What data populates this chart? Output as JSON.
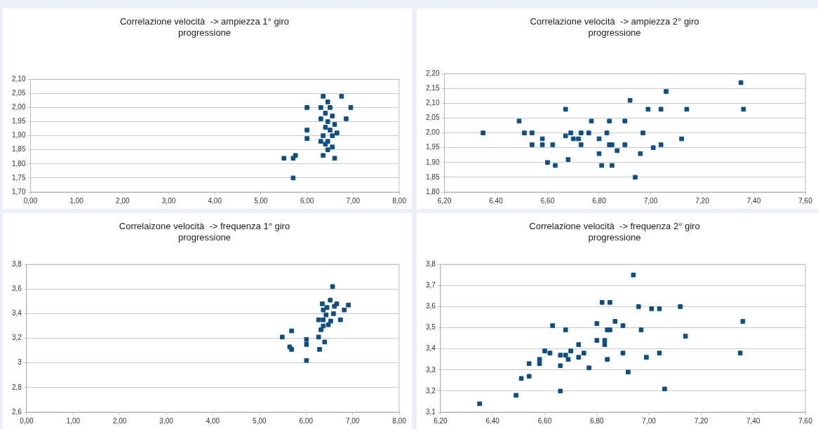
{
  "chart_data": [
    {
      "type": "scatter",
      "title": "Correlazione velocità  -> ampiezza 1° giro progressione",
      "marker": "square",
      "grid": "y",
      "xlim": [
        0,
        8
      ],
      "xticks": [
        {
          "value": 0,
          "label": "0,00"
        },
        {
          "value": 1,
          "label": "1,00"
        },
        {
          "value": 2,
          "label": "2,00"
        },
        {
          "value": 3,
          "label": "3,00"
        },
        {
          "value": 4,
          "label": "4,00"
        },
        {
          "value": 5,
          "label": "5,00"
        },
        {
          "value": 6,
          "label": "6,00"
        },
        {
          "value": 7,
          "label": "7,00"
        },
        {
          "value": 8,
          "label": "8,00"
        }
      ],
      "ylim": [
        1.7,
        2.1
      ],
      "yticks": [
        {
          "value": 1.7,
          "label": "1,70"
        },
        {
          "value": 1.75,
          "label": "1,75"
        },
        {
          "value": 1.8,
          "label": "1,80"
        },
        {
          "value": 1.85,
          "label": "1,85"
        },
        {
          "value": 1.9,
          "label": "1,90"
        },
        {
          "value": 1.95,
          "label": "1,95"
        },
        {
          "value": 2.0,
          "label": "2,00"
        },
        {
          "value": 2.05,
          "label": "2,05"
        },
        {
          "value": 2.1,
          "label": "2,10"
        }
      ],
      "series": [
        {
          "color": "#0b4f86",
          "x": [
            6.35,
            6.75,
            6.45,
            6.0,
            6.3,
            6.5,
            6.95,
            6.4,
            6.55,
            6.85,
            6.3,
            6.45,
            6.6,
            6.4,
            6.5,
            6.0,
            6.65,
            6.35,
            6.55,
            6.0,
            6.3,
            6.45,
            6.55,
            6.45,
            6.35,
            6.6,
            5.5,
            5.7,
            5.75,
            5.7,
            6.4
          ],
          "values": [
            2.04,
            2.04,
            2.02,
            2.0,
            2.0,
            2.0,
            2.0,
            1.98,
            1.97,
            1.96,
            1.96,
            1.95,
            1.94,
            1.93,
            1.92,
            1.92,
            1.91,
            1.9,
            1.9,
            1.89,
            1.88,
            1.88,
            1.86,
            1.85,
            1.83,
            1.82,
            1.82,
            1.82,
            1.83,
            1.75,
            1.87
          ]
        }
      ]
    },
    {
      "type": "scatter",
      "title": "Correlazione velocità  -> ampiezza 2° giro progressione",
      "marker": "square",
      "grid": "y",
      "xlim": [
        6.2,
        7.6
      ],
      "xticks": [
        {
          "value": 6.2,
          "label": "6,20"
        },
        {
          "value": 6.4,
          "label": "6,40"
        },
        {
          "value": 6.6,
          "label": "6,60"
        },
        {
          "value": 6.8,
          "label": "6,80"
        },
        {
          "value": 7.0,
          "label": "7,00"
        },
        {
          "value": 7.2,
          "label": "7,20"
        },
        {
          "value": 7.4,
          "label": "7,40"
        },
        {
          "value": 7.6,
          "label": "7,60"
        }
      ],
      "ylim": [
        1.8,
        2.2
      ],
      "yticks": [
        {
          "value": 1.8,
          "label": "1,80"
        },
        {
          "value": 1.85,
          "label": "1,85"
        },
        {
          "value": 1.9,
          "label": "1,90"
        },
        {
          "value": 1.95,
          "label": "1,95"
        },
        {
          "value": 2.0,
          "label": "2,00"
        },
        {
          "value": 2.05,
          "label": "2,05"
        },
        {
          "value": 2.1,
          "label": "2,10"
        },
        {
          "value": 2.15,
          "label": "2,15"
        },
        {
          "value": 2.2,
          "label": "2,20"
        }
      ],
      "series": [
        {
          "color": "#0b4f86",
          "x": [
            6.35,
            6.49,
            6.51,
            6.54,
            6.54,
            6.58,
            6.58,
            6.62,
            6.6,
            6.63,
            6.67,
            6.67,
            6.69,
            6.68,
            6.7,
            6.73,
            6.73,
            6.76,
            6.77,
            6.8,
            6.8,
            6.83,
            6.84,
            6.84,
            6.85,
            6.81,
            6.85,
            6.87,
            6.9,
            6.9,
            6.92,
            6.94,
            6.96,
            6.97,
            6.99,
            7.01,
            7.04,
            7.04,
            7.06,
            7.12,
            7.14,
            7.35,
            7.36,
            6.72
          ],
          "values": [
            2.0,
            2.04,
            2.0,
            2.0,
            1.96,
            1.98,
            1.96,
            1.96,
            1.9,
            1.89,
            2.08,
            1.99,
            2.0,
            1.91,
            1.98,
            2.0,
            1.96,
            2.0,
            2.04,
            1.98,
            1.93,
            2.0,
            2.04,
            1.96,
            1.96,
            1.89,
            1.89,
            1.94,
            2.04,
            1.96,
            2.11,
            1.85,
            1.93,
            2.0,
            2.08,
            1.95,
            2.08,
            1.96,
            2.14,
            1.98,
            2.08,
            2.17,
            2.08,
            1.98
          ]
        }
      ]
    },
    {
      "type": "scatter",
      "title": "Correlaizone velocità  -> frequenza 1° giro progressione",
      "marker": "square",
      "grid": "y",
      "xlim": [
        0,
        8
      ],
      "xticks": [
        {
          "value": 0,
          "label": "0,00"
        },
        {
          "value": 1,
          "label": "1,00"
        },
        {
          "value": 2,
          "label": "2,00"
        },
        {
          "value": 3,
          "label": "3,00"
        },
        {
          "value": 4,
          "label": "4,00"
        },
        {
          "value": 5,
          "label": "5,00"
        },
        {
          "value": 6,
          "label": "6,00"
        },
        {
          "value": 7,
          "label": "7,00"
        },
        {
          "value": 8,
          "label": "8,00"
        }
      ],
      "ylim": [
        2.6,
        3.8
      ],
      "yticks": [
        {
          "value": 2.6,
          "label": "2,6"
        },
        {
          "value": 2.8,
          "label": "2,8"
        },
        3,
        {
          "value": 3.2,
          "label": "3,2"
        },
        {
          "value": 3.4,
          "label": "3,4"
        },
        {
          "value": 3.6,
          "label": "3,6"
        },
        {
          "value": 3.8,
          "label": "3,8"
        }
      ],
      "series": [
        {
          "color": "#0b4f86",
          "x": [
            6.57,
            5.49,
            5.69,
            5.65,
            5.69,
            6.01,
            6.01,
            6.01,
            6.27,
            6.29,
            6.4,
            6.27,
            6.35,
            6.52,
            6.66,
            6.91,
            6.82,
            6.74,
            6.37,
            6.37,
            6.43,
            6.48,
            6.53,
            6.59,
            6.32,
            6.61,
            6.37,
            6.45
          ],
          "values": [
            3.62,
            3.21,
            3.26,
            3.13,
            3.11,
            3.19,
            3.15,
            3.02,
            3.21,
            3.11,
            3.17,
            3.35,
            3.48,
            3.51,
            3.48,
            3.47,
            3.43,
            3.35,
            3.43,
            3.35,
            3.39,
            3.31,
            3.34,
            3.4,
            3.27,
            3.46,
            3.3,
            3.45
          ]
        }
      ]
    },
    {
      "type": "scatter",
      "title": "Correlazione velocità  -> frequenza 2° giro progressione",
      "marker": "square",
      "grid": "y",
      "xlim": [
        6.2,
        7.6
      ],
      "xticks": [
        {
          "value": 6.2,
          "label": "6,20"
        },
        {
          "value": 6.4,
          "label": "6,40"
        },
        {
          "value": 6.6,
          "label": "6,60"
        },
        {
          "value": 6.8,
          "label": "6,80"
        },
        {
          "value": 7.0,
          "label": "7,00"
        },
        {
          "value": 7.2,
          "label": "7,20"
        },
        {
          "value": 7.4,
          "label": "7,40"
        },
        {
          "value": 7.6,
          "label": "7,60"
        }
      ],
      "ylim": [
        3.1,
        3.8
      ],
      "yticks": [
        {
          "value": 3.1,
          "label": "3,1"
        },
        {
          "value": 3.2,
          "label": "3,2"
        },
        {
          "value": 3.3,
          "label": "3,3"
        },
        {
          "value": 3.4,
          "label": "3,4"
        },
        {
          "value": 3.5,
          "label": "3,5"
        },
        {
          "value": 3.6,
          "label": "3,6"
        },
        {
          "value": 3.7,
          "label": "3,7"
        },
        {
          "value": 3.8,
          "label": "3,8"
        }
      ],
      "series": [
        {
          "color": "#0b4f86",
          "x": [
            6.35,
            6.49,
            6.51,
            6.54,
            6.54,
            6.58,
            6.58,
            6.6,
            6.62,
            6.63,
            6.66,
            6.66,
            6.66,
            6.68,
            6.68,
            6.69,
            6.7,
            6.73,
            6.73,
            6.75,
            6.77,
            6.8,
            6.8,
            6.83,
            6.83,
            6.82,
            6.85,
            6.84,
            6.85,
            6.84,
            6.87,
            6.9,
            6.9,
            6.92,
            6.94,
            6.96,
            6.97,
            6.99,
            7.01,
            7.04,
            7.04,
            7.06,
            7.12,
            7.14,
            7.35,
            7.36
          ],
          "values": [
            3.14,
            3.18,
            3.26,
            3.27,
            3.33,
            3.35,
            3.33,
            3.39,
            3.38,
            3.51,
            3.37,
            3.32,
            3.2,
            3.49,
            3.37,
            3.35,
            3.39,
            3.42,
            3.36,
            3.38,
            3.31,
            3.52,
            3.44,
            3.44,
            3.42,
            3.62,
            3.62,
            3.49,
            3.49,
            3.35,
            3.53,
            3.51,
            3.38,
            3.29,
            3.75,
            3.6,
            3.49,
            3.36,
            3.59,
            3.59,
            3.38,
            3.21,
            3.6,
            3.46,
            3.38,
            3.53
          ]
        }
      ]
    }
  ]
}
